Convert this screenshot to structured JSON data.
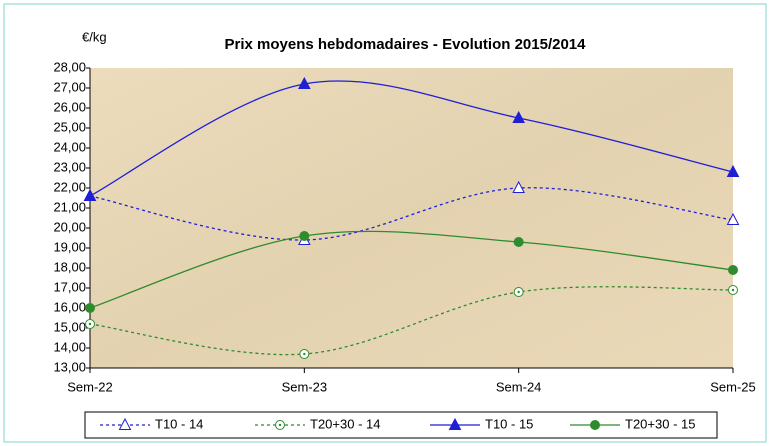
{
  "chart_data": {
    "type": "line",
    "title": "Prix moyens hebdomadaires - Evolution 2015/2014",
    "y_label": "€/kg",
    "categories": [
      "Sem-22",
      "Sem-23",
      "Sem-24",
      "Sem-25"
    ],
    "series": [
      {
        "name": "T10 - 14",
        "color": "#1f1fd6",
        "dash": "dotted",
        "marker": "triangle-open",
        "values": [
          21.6,
          19.4,
          22.0,
          20.4
        ]
      },
      {
        "name": "T20+30 - 14",
        "color": "#2e8b2e",
        "dash": "dotted",
        "marker": "circle-open",
        "values": [
          15.2,
          13.7,
          16.8,
          16.9
        ]
      },
      {
        "name": "T10 - 15",
        "color": "#1f1fd6",
        "dash": "solid",
        "marker": "triangle-filled",
        "values": [
          21.6,
          27.2,
          25.5,
          22.8
        ]
      },
      {
        "name": "T20+30 - 15",
        "color": "#2e8b2e",
        "dash": "solid",
        "marker": "circle-filled",
        "values": [
          16.0,
          19.6,
          19.3,
          17.9
        ]
      }
    ],
    "ylim": [
      13,
      28
    ],
    "yticks": [
      {
        "value": 13,
        "label": "13,00"
      },
      {
        "value": 14,
        "label": "14,00"
      },
      {
        "value": 15,
        "label": "15,00"
      },
      {
        "value": 16,
        "label": "16,00"
      },
      {
        "value": 17,
        "label": "17,00"
      },
      {
        "value": 18,
        "label": "18,00"
      },
      {
        "value": 19,
        "label": "19,00"
      },
      {
        "value": 20,
        "label": "20,00"
      },
      {
        "value": 21,
        "label": "21,00"
      },
      {
        "value": 22,
        "label": "22,00"
      },
      {
        "value": 23,
        "label": "23,00"
      },
      {
        "value": 24,
        "label": "24,00"
      },
      {
        "value": 25,
        "label": "25,00"
      },
      {
        "value": 26,
        "label": "26,00"
      },
      {
        "value": 27,
        "label": "27,00"
      },
      {
        "value": 28,
        "label": "28,00"
      }
    ],
    "smooth": true,
    "grid": false,
    "legend": "bottom"
  }
}
